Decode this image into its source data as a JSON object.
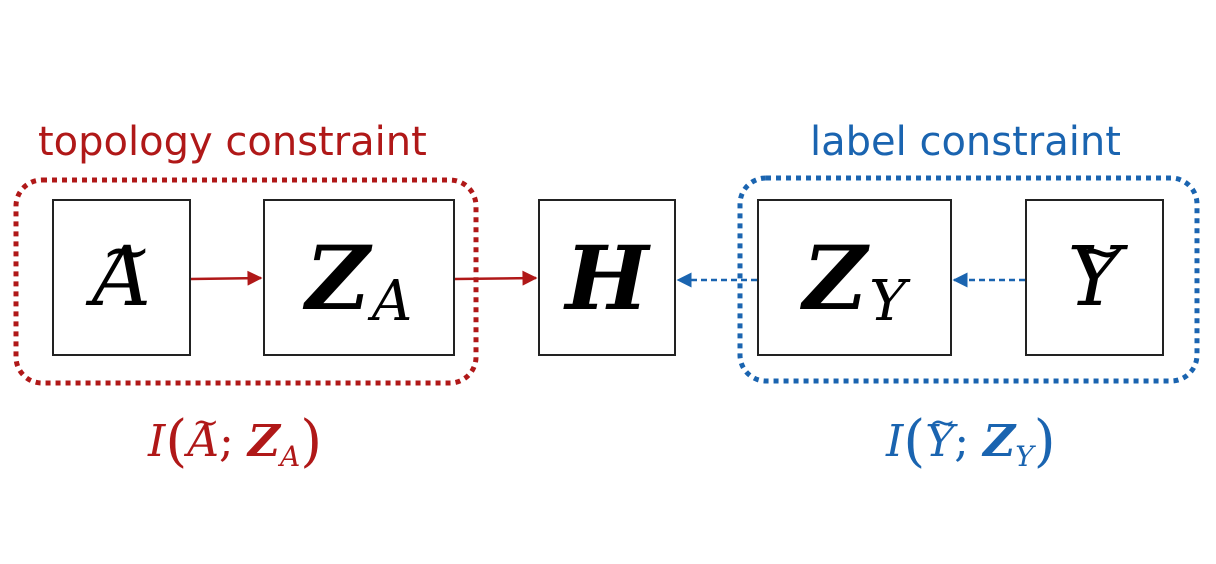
{
  "groups": {
    "topology": {
      "caption": "topology constraint",
      "formula": {
        "func": "I",
        "left": "A",
        "sep": ";",
        "right": "Z",
        "right_sub": "A"
      },
      "color": "#b01818"
    },
    "label": {
      "caption": "label constraint",
      "formula": {
        "func": "I",
        "left": "Y",
        "sep": ";",
        "right": "Z",
        "right_sub": "Y"
      },
      "color": "#1a64b0"
    }
  },
  "nodes": {
    "a_tilde": {
      "symbol": "A",
      "accent": "~"
    },
    "z_a": {
      "symbol": "Z",
      "sub": "A"
    },
    "h": {
      "symbol": "H"
    },
    "z_y": {
      "symbol": "Z",
      "sub": "Y"
    },
    "y_tilde": {
      "symbol": "Y",
      "accent": "~"
    }
  },
  "edges": [
    {
      "from": "a_tilde",
      "to": "z_a",
      "style": "solid",
      "color": "#b01818"
    },
    {
      "from": "z_a",
      "to": "h",
      "style": "solid",
      "color": "#b01818"
    },
    {
      "from": "z_y",
      "to": "h",
      "style": "dashed",
      "color": "#1a64b0"
    },
    {
      "from": "y_tilde",
      "to": "z_y",
      "style": "dashed",
      "color": "#1a64b0"
    }
  ]
}
